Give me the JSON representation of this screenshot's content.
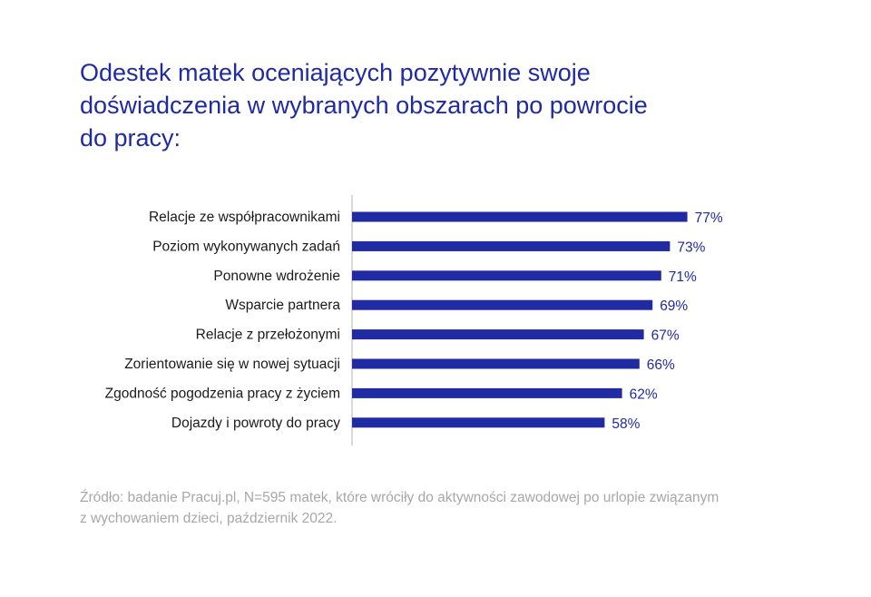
{
  "title_lines": [
    "Odestek matek oceniających pozytywnie swoje",
    "doświadczenia w wybranych obszarach po powrocie",
    "do pracy:"
  ],
  "source_lines": [
    "Źródło: badanie Pracuj.pl, N=595 matek, które wróciły do aktywności zawodowej po urlopie związanym",
    "z wychowaniem dzieci, październik 2022."
  ],
  "colors": {
    "bar": "#1f2aa3",
    "title": "#1f2aa3",
    "label": "#1a1a1a",
    "axis": "#bfbfbf",
    "source": "#a7a7a7"
  },
  "chart_data": {
    "type": "bar",
    "orientation": "horizontal",
    "categories": [
      "Relacje ze współpracownikami",
      "Poziom wykonywanych zadań",
      "Ponowne wdrożenie",
      "Wsparcie partnera",
      "Relacje z przełożonymi",
      "Zorientowanie się w nowej sytuacji",
      "Zgodność pogodzenia pracy z życiem",
      "Dojazdy i powroty do pracy"
    ],
    "values": [
      77,
      73,
      71,
      69,
      67,
      66,
      62,
      58
    ],
    "value_labels": [
      "77%",
      "73%",
      "71%",
      "69%",
      "67%",
      "66%",
      "62%",
      "58%"
    ],
    "xlim": [
      0,
      100
    ],
    "grid": false,
    "legend": "none"
  }
}
